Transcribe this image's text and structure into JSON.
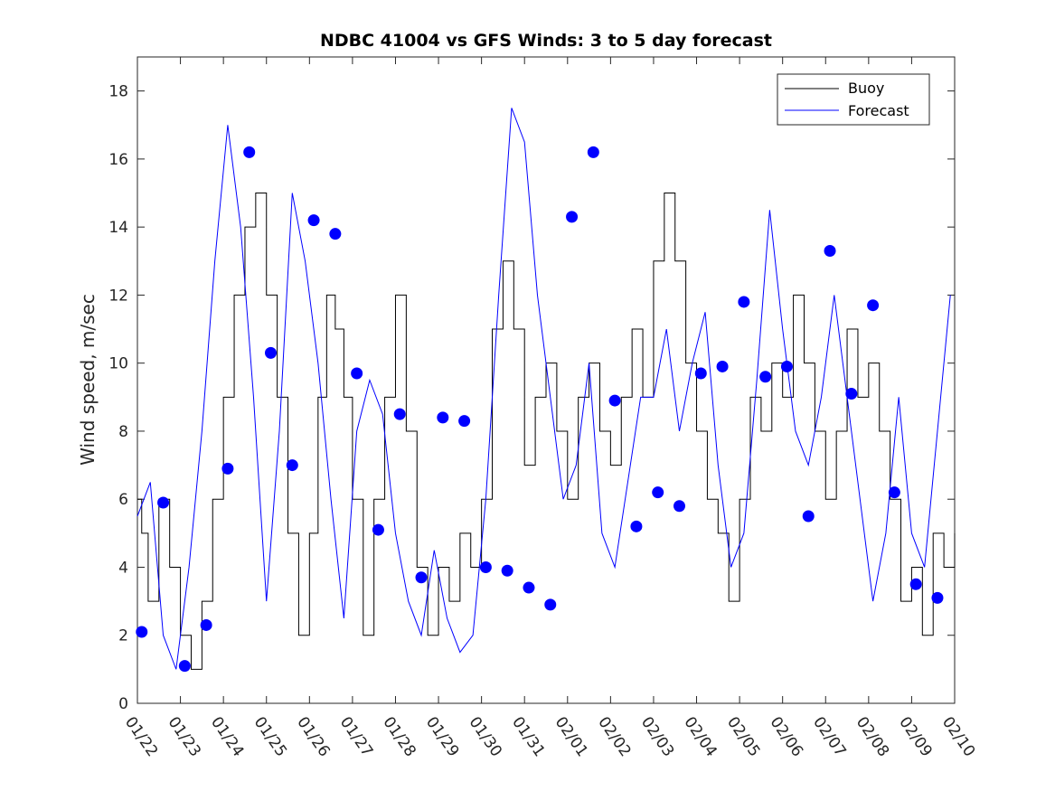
{
  "chart_data": {
    "type": "line",
    "title": "NDBC 41004 vs GFS Winds: 3 to 5 day forecast",
    "xlabel": "",
    "ylabel": "Wind speed, m/sec",
    "xlim": [
      0,
      19
    ],
    "ylim": [
      0,
      19
    ],
    "yticks": [
      0,
      2,
      4,
      6,
      8,
      10,
      12,
      14,
      16,
      18
    ],
    "xtick_labels": [
      "01/22",
      "01/23",
      "01/24",
      "01/25",
      "01/26",
      "01/27",
      "01/28",
      "01/29",
      "01/30",
      "01/31",
      "02/01",
      "02/02",
      "02/03",
      "02/04",
      "02/05",
      "02/06",
      "02/07",
      "02/08",
      "02/09",
      "02/10"
    ],
    "legend": {
      "placement": "top-right",
      "entries": [
        "Buoy",
        "Forecast"
      ]
    },
    "colors": {
      "buoy": "#000000",
      "forecast": "#0000ff",
      "markers": "#0000ff"
    },
    "series": [
      {
        "name": "Buoy",
        "style": "step",
        "x": [
          0.0,
          0.1,
          0.25,
          0.5,
          0.75,
          1.0,
          1.25,
          1.5,
          1.75,
          2.0,
          2.25,
          2.5,
          2.75,
          3.0,
          3.25,
          3.5,
          3.75,
          4.0,
          4.2,
          4.4,
          4.6,
          4.8,
          5.0,
          5.25,
          5.5,
          5.75,
          6.0,
          6.25,
          6.5,
          6.75,
          7.0,
          7.25,
          7.5,
          7.75,
          8.0,
          8.25,
          8.5,
          8.75,
          9.0,
          9.25,
          9.5,
          9.75,
          10.0,
          10.25,
          10.5,
          10.75,
          11.0,
          11.25,
          11.5,
          11.75,
          12.0,
          12.25,
          12.5,
          12.75,
          13.0,
          13.25,
          13.5,
          13.75,
          14.0,
          14.25,
          14.5,
          14.75,
          15.0,
          15.25,
          15.5,
          15.75,
          16.0,
          16.25,
          16.5,
          16.75,
          17.0,
          17.25,
          17.5,
          17.75,
          18.0,
          18.25,
          18.5,
          18.75,
          19.0
        ],
        "y": [
          6,
          5,
          3,
          6,
          4,
          2,
          1,
          3,
          6,
          9,
          12,
          14,
          15,
          12,
          9,
          5,
          2,
          5,
          9,
          12,
          11,
          9,
          6,
          2,
          6,
          9,
          12,
          8,
          4,
          2,
          4,
          3,
          5,
          4,
          6,
          11,
          13,
          11,
          7,
          9,
          10,
          8,
          6,
          9,
          10,
          8,
          7,
          9,
          11,
          9,
          13,
          15,
          13,
          10,
          8,
          6,
          5,
          3,
          6,
          9,
          8,
          10,
          9,
          12,
          10,
          8,
          6,
          8,
          11,
          9,
          10,
          8,
          6,
          3,
          4,
          2,
          5,
          4,
          5
        ]
      },
      {
        "name": "Forecast",
        "style": "line",
        "x": [
          0.0,
          0.3,
          0.6,
          0.9,
          1.2,
          1.5,
          1.8,
          2.1,
          2.4,
          2.7,
          3.0,
          3.3,
          3.6,
          3.9,
          4.2,
          4.5,
          4.8,
          5.1,
          5.4,
          5.7,
          6.0,
          6.3,
          6.6,
          6.9,
          7.2,
          7.5,
          7.8,
          8.1,
          8.4,
          8.7,
          9.0,
          9.3,
          9.6,
          9.9,
          10.2,
          10.5,
          10.8,
          11.1,
          11.4,
          11.7,
          12.0,
          12.3,
          12.6,
          12.9,
          13.2,
          13.5,
          13.8,
          14.1,
          14.4,
          14.7,
          15.0,
          15.3,
          15.6,
          15.9,
          16.2,
          16.5,
          16.8,
          17.1,
          17.4,
          17.7,
          18.0,
          18.3,
          18.6,
          18.9
        ],
        "y": [
          5.5,
          6.5,
          2.0,
          1.0,
          4.0,
          8.0,
          13.0,
          17.0,
          14.0,
          9.0,
          3.0,
          8.0,
          15.0,
          13.0,
          10.0,
          6.0,
          2.5,
          8.0,
          9.5,
          8.5,
          5.0,
          3.0,
          2.0,
          4.5,
          2.5,
          1.5,
          2.0,
          6.0,
          12.0,
          17.5,
          16.5,
          12.0,
          9.0,
          6.0,
          7.0,
          10.0,
          5.0,
          4.0,
          6.5,
          9.0,
          9.0,
          11.0,
          8.0,
          10.0,
          11.5,
          7.0,
          4.0,
          5.0,
          9.5,
          14.5,
          11.0,
          8.0,
          7.0,
          9.0,
          12.0,
          9.0,
          6.0,
          3.0,
          5.0,
          9.0,
          5.0,
          4.0,
          8.0,
          12.0
        ]
      }
    ],
    "forecast_points": {
      "x": [
        0.1,
        0.6,
        1.1,
        1.6,
        2.1,
        2.6,
        3.1,
        3.6,
        4.1,
        4.6,
        5.1,
        5.6,
        6.1,
        6.6,
        7.1,
        7.6,
        8.1,
        8.6,
        9.1,
        9.6,
        10.1,
        10.6,
        11.1,
        11.6,
        12.1,
        12.6,
        13.1,
        13.6,
        14.1,
        14.6,
        15.1,
        15.6,
        16.1,
        16.6,
        17.1,
        17.6,
        18.1,
        18.6
      ],
      "y": [
        2.1,
        5.9,
        1.1,
        2.3,
        6.9,
        16.2,
        10.3,
        7.0,
        14.2,
        13.8,
        9.7,
        5.1,
        8.5,
        3.7,
        8.4,
        8.3,
        4.0,
        3.9,
        3.4,
        2.9,
        14.3,
        16.2,
        8.9,
        5.2,
        6.2,
        5.8,
        9.7,
        9.9,
        11.8,
        9.6,
        9.9,
        5.5,
        13.3,
        9.1,
        11.7,
        6.2,
        3.5,
        3.1
      ]
    }
  }
}
